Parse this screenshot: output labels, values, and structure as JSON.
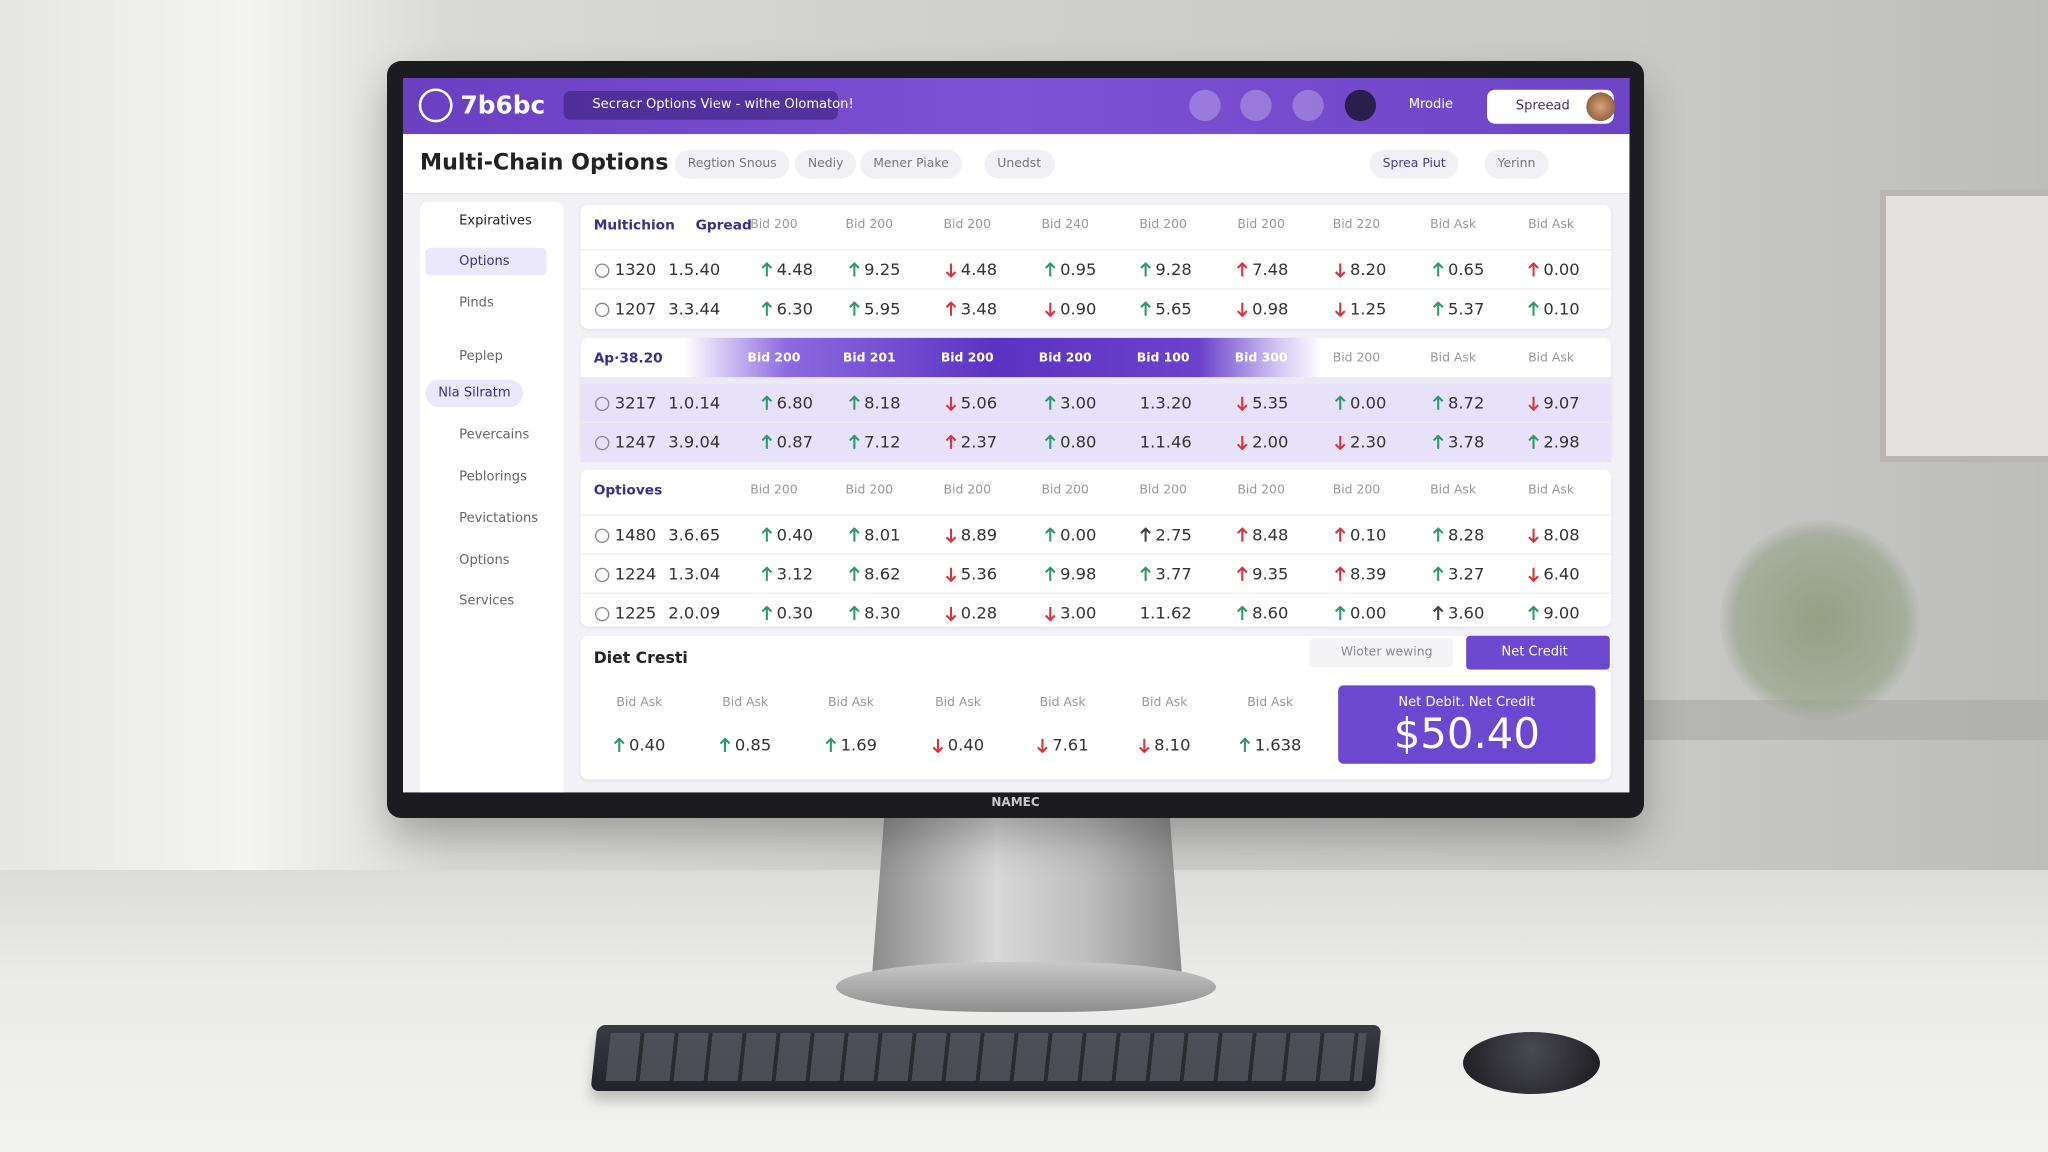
{
  "header": {
    "logo": "7b6bc",
    "search": "Secracr Options View - withe Olomaton!",
    "user": "Mrodie",
    "button": "Spreead"
  },
  "toolbar": {
    "title": "Multi-Chain Options",
    "filters": [
      "Regtion Snous",
      "Nediy",
      "Mener Piake",
      "Unedst"
    ],
    "actions": [
      "Sprea Piut",
      "Yerinn"
    ]
  },
  "sidebar": [
    "Expiratives",
    "Options",
    "Pinds",
    "Peplep",
    "Nla Silratm",
    "Pevercains",
    "Peblorings",
    "Pevictations",
    "Options",
    "Services"
  ],
  "sections": [
    {
      "label": "Multichion",
      "sublabel": "Gpread",
      "columns": [
        "Bid 200",
        "Bid 200",
        "Bid 200",
        "Bid 240",
        "Bid 200",
        "Bid 200",
        "Bid 220",
        "Bid Ask",
        "Bid Ask"
      ],
      "rows": [
        {
          "id": "1320",
          "base": "1.5.40",
          "cells": [
            {
              "text": "4.48",
              "dir": "up",
              "tone": "green"
            },
            {
              "text": "9.25",
              "dir": "up",
              "tone": "green"
            },
            {
              "text": "4.48",
              "dir": "down",
              "tone": "red"
            },
            {
              "text": "0.95",
              "dir": "up",
              "tone": "green"
            },
            {
              "text": "9.28",
              "dir": "up",
              "tone": "green"
            },
            {
              "text": "7.48",
              "dir": "up",
              "tone": "red"
            },
            {
              "text": "8.20",
              "dir": "down",
              "tone": "red"
            },
            {
              "text": "0.65",
              "dir": "up",
              "tone": "green"
            },
            {
              "text": "0.00",
              "dir": "up",
              "tone": "red"
            }
          ]
        },
        {
          "id": "1207",
          "base": "3.3.44",
          "cells": [
            {
              "text": "6.30",
              "dir": "up",
              "tone": "green"
            },
            {
              "text": "5.95",
              "dir": "up",
              "tone": "green"
            },
            {
              "text": "3.48",
              "dir": "up",
              "tone": "red"
            },
            {
              "text": "0.90",
              "dir": "down",
              "tone": "red"
            },
            {
              "text": "5.65",
              "dir": "up",
              "tone": "green"
            },
            {
              "text": "0.98",
              "dir": "down",
              "tone": "red"
            },
            {
              "text": "1.25",
              "dir": "down",
              "tone": "red"
            },
            {
              "text": "5.37",
              "dir": "up",
              "tone": "green"
            },
            {
              "text": "0.10",
              "dir": "up",
              "tone": "green"
            }
          ]
        }
      ]
    },
    {
      "label": "Ap·38.20",
      "columns": [
        "Bid 200",
        "Bid 201",
        "Bid 200",
        "Bid 200",
        "Bid 100",
        "Bid 300",
        "Bid 200",
        "Bid Ask",
        "Bid Ask"
      ],
      "rows": [
        {
          "id": "3217",
          "base": "1.0.14",
          "cells": [
            {
              "text": "6.80",
              "dir": "up",
              "tone": "green"
            },
            {
              "text": "8.18",
              "dir": "up",
              "tone": "green"
            },
            {
              "text": "5.06",
              "dir": "down",
              "tone": "red"
            },
            {
              "text": "3.00",
              "dir": "up",
              "tone": "green"
            },
            {
              "text": "1.3.20"
            },
            {
              "text": "5.35",
              "dir": "down",
              "tone": "red"
            },
            {
              "text": "0.00",
              "dir": "up",
              "tone": "green"
            },
            {
              "text": "8.72",
              "dir": "up",
              "tone": "green"
            },
            {
              "text": "9.07",
              "dir": "down",
              "tone": "red"
            }
          ]
        },
        {
          "id": "1247",
          "base": "3.9.04",
          "cells": [
            {
              "text": "0.87",
              "dir": "up",
              "tone": "green"
            },
            {
              "text": "7.12",
              "dir": "up",
              "tone": "green"
            },
            {
              "text": "2.37",
              "dir": "up",
              "tone": "red"
            },
            {
              "text": "0.80",
              "dir": "up",
              "tone": "green"
            },
            {
              "text": "1.1.46"
            },
            {
              "text": "2.00",
              "dir": "down",
              "tone": "red"
            },
            {
              "text": "2.30",
              "dir": "down",
              "tone": "red"
            },
            {
              "text": "3.78",
              "dir": "up",
              "tone": "green"
            },
            {
              "text": "2.98",
              "dir": "up",
              "tone": "green"
            }
          ]
        }
      ]
    },
    {
      "label": "Optioves",
      "columns": [
        "Bid 200",
        "Bid 200",
        "Bid 200",
        "Bid 200",
        "Bid 200",
        "Bid 200",
        "Bid 200",
        "Bid Ask",
        "Bid Ask"
      ],
      "rows": [
        {
          "id": "1480",
          "base": "3.6.65",
          "cells": [
            {
              "text": "0.40",
              "dir": "up",
              "tone": "green"
            },
            {
              "text": "8.01",
              "dir": "up",
              "tone": "green"
            },
            {
              "text": "8.89",
              "dir": "down",
              "tone": "red"
            },
            {
              "text": "0.00",
              "dir": "up",
              "tone": "green"
            },
            {
              "text": "2.75",
              "dir": "up",
              "tone": "dark"
            },
            {
              "text": "8.48",
              "dir": "up",
              "tone": "red"
            },
            {
              "text": "0.10",
              "dir": "up",
              "tone": "red"
            },
            {
              "text": "8.28",
              "dir": "up",
              "tone": "green"
            },
            {
              "text": "8.08",
              "dir": "down",
              "tone": "red"
            }
          ]
        },
        {
          "id": "1224",
          "base": "1.3.04",
          "cells": [
            {
              "text": "3.12",
              "dir": "up",
              "tone": "green"
            },
            {
              "text": "8.62",
              "dir": "up",
              "tone": "green"
            },
            {
              "text": "5.36",
              "dir": "down",
              "tone": "red"
            },
            {
              "text": "9.98",
              "dir": "up",
              "tone": "green"
            },
            {
              "text": "3.77",
              "dir": "up",
              "tone": "green"
            },
            {
              "text": "9.35",
              "dir": "up",
              "tone": "red"
            },
            {
              "text": "8.39",
              "dir": "up",
              "tone": "red"
            },
            {
              "text": "3.27",
              "dir": "up",
              "tone": "green"
            },
            {
              "text": "6.40",
              "dir": "down",
              "tone": "red"
            }
          ]
        },
        {
          "id": "1225",
          "base": "2.0.09",
          "cells": [
            {
              "text": "0.30",
              "dir": "up",
              "tone": "green"
            },
            {
              "text": "8.30",
              "dir": "up",
              "tone": "green"
            },
            {
              "text": "0.28",
              "dir": "down",
              "tone": "red"
            },
            {
              "text": "3.00",
              "dir": "down",
              "tone": "red"
            },
            {
              "text": "1.1.62"
            },
            {
              "text": "8.60",
              "dir": "up",
              "tone": "green"
            },
            {
              "text": "0.00",
              "dir": "up",
              "tone": "green"
            },
            {
              "text": "3.60",
              "dir": "up",
              "tone": "dark"
            },
            {
              "text": "9.00",
              "dir": "up",
              "tone": "green"
            }
          ]
        }
      ]
    }
  ],
  "summary": {
    "title": "Diet Cresti",
    "view": "Wioter wewing",
    "button": "Net Credit",
    "columns": [
      "Bid Ask",
      "Bid Ask",
      "Bid Ask",
      "Bid Ask",
      "Bid Ask",
      "Bid Ask",
      "Bid Ask"
    ],
    "cells": [
      {
        "text": "0.40",
        "dir": "up",
        "tone": "green"
      },
      {
        "text": "0.85",
        "dir": "up",
        "tone": "green"
      },
      {
        "text": "1.69",
        "dir": "up",
        "tone": "green"
      },
      {
        "text": "0.40",
        "dir": "down",
        "tone": "red"
      },
      {
        "text": "7.61",
        "dir": "down",
        "tone": "red"
      },
      {
        "text": "8.10",
        "dir": "down",
        "tone": "red"
      },
      {
        "text": "1.638",
        "dir": "up",
        "tone": "green"
      }
    ],
    "card_label": "Net Debit. Net Credit",
    "card_value": "$50.40"
  },
  "monitor": {
    "brand": "NAMEC"
  }
}
